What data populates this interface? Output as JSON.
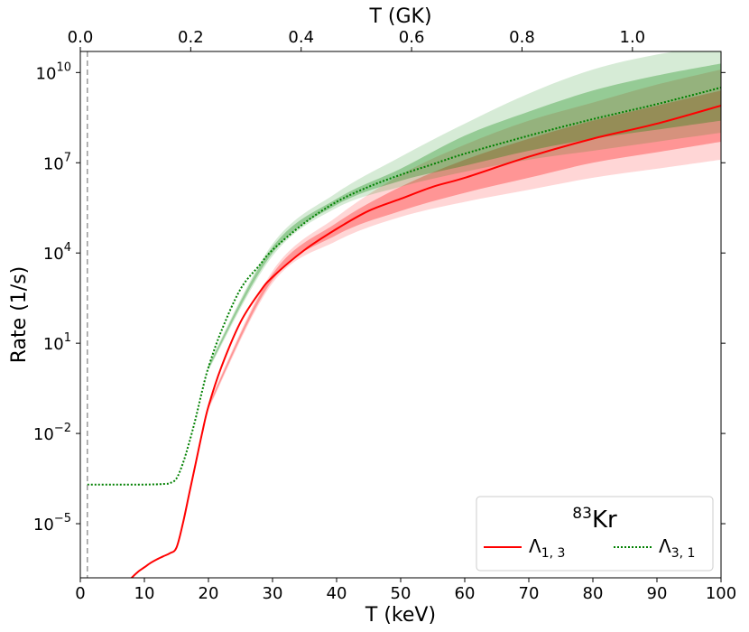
{
  "chart_data": {
    "type": "line",
    "title": "",
    "xlabel": "T (keV)",
    "ylabel": "Rate (1/s)",
    "x2label": "T (GK)",
    "xlim": [
      0,
      100
    ],
    "ylim_log10": [
      -6.8,
      10.7
    ],
    "yscale": "log",
    "x_ticks": [
      0,
      10,
      20,
      30,
      40,
      50,
      60,
      70,
      80,
      90,
      100
    ],
    "x_tick_labels": [
      "0",
      "10",
      "20",
      "30",
      "40",
      "50",
      "60",
      "70",
      "80",
      "90",
      "100"
    ],
    "y_ticks": [
      {
        "exp": 10,
        "base": "10",
        "sup": "10"
      },
      {
        "exp": 7,
        "base": "10",
        "sup": "7"
      },
      {
        "exp": 4,
        "base": "10",
        "sup": "4"
      },
      {
        "exp": 1,
        "base": "10",
        "sup": "1"
      },
      {
        "exp": -2,
        "base": "10",
        "sup": "−2"
      },
      {
        "exp": -5,
        "base": "10",
        "sup": "−5"
      }
    ],
    "x2_ticks": [
      0.0,
      0.2,
      0.4,
      0.6,
      0.8,
      1.0
    ],
    "x2_tick_labels": [
      "0.0",
      "0.2",
      "0.4",
      "0.6",
      "0.8",
      "1.0"
    ],
    "vline_x": 1.1,
    "legend": {
      "title_sup": "83",
      "title_base": "Kr",
      "placement": "lower-right",
      "entries": [
        {
          "base": "Λ",
          "sub": "1, 3",
          "color": "#ff0000",
          "style": "solid"
        },
        {
          "base": "Λ",
          "sub": "3, 1",
          "color": "#008000",
          "style": "dotted"
        }
      ]
    },
    "series": [
      {
        "name": "Λ1,3",
        "color": "#ff0000",
        "style": "solid",
        "x": [
          7,
          8,
          9,
          10,
          11,
          12,
          13,
          14,
          15,
          16,
          17,
          18,
          19,
          20,
          22,
          25,
          28,
          30,
          35,
          40,
          45,
          50,
          55,
          60,
          70,
          80,
          90,
          100
        ],
        "log10_y": [
          -7.0,
          -6.8,
          -6.6,
          -6.45,
          -6.3,
          -6.18,
          -6.08,
          -5.98,
          -5.8,
          -5.0,
          -4.0,
          -3.0,
          -2.0,
          -1.1,
          0.2,
          1.7,
          2.7,
          3.2,
          4.1,
          4.8,
          5.4,
          5.8,
          6.2,
          6.5,
          7.2,
          7.8,
          8.3,
          8.9
        ],
        "band_inner_log10": [
          {
            "x": 20,
            "lo": -1.15,
            "hi": -1.05
          },
          {
            "x": 30,
            "lo": 3.1,
            "hi": 3.3
          },
          {
            "x": 40,
            "lo": 4.6,
            "hi": 5.0
          },
          {
            "x": 50,
            "lo": 5.4,
            "hi": 6.2
          },
          {
            "x": 60,
            "lo": 6.0,
            "hi": 7.1
          },
          {
            "x": 70,
            "lo": 6.5,
            "hi": 7.8
          },
          {
            "x": 80,
            "lo": 7.0,
            "hi": 8.4
          },
          {
            "x": 90,
            "lo": 7.35,
            "hi": 8.9
          },
          {
            "x": 100,
            "lo": 7.7,
            "hi": 9.4
          }
        ],
        "band_outer_log10": [
          {
            "x": 20,
            "lo": -1.2,
            "hi": -1.0
          },
          {
            "x": 30,
            "lo": 3.0,
            "hi": 3.4
          },
          {
            "x": 40,
            "lo": 4.4,
            "hi": 5.2
          },
          {
            "x": 50,
            "lo": 5.2,
            "hi": 6.6
          },
          {
            "x": 60,
            "lo": 5.7,
            "hi": 7.6
          },
          {
            "x": 70,
            "lo": 6.1,
            "hi": 8.4
          },
          {
            "x": 80,
            "lo": 6.5,
            "hi": 9.0
          },
          {
            "x": 90,
            "lo": 6.8,
            "hi": 9.6
          },
          {
            "x": 100,
            "lo": 7.1,
            "hi": 10.1
          }
        ]
      },
      {
        "name": "Λ3,1",
        "color": "#008000",
        "style": "dotted",
        "x": [
          1.1,
          5,
          10,
          13,
          14,
          15,
          16,
          17,
          18,
          19,
          20,
          22,
          25,
          28,
          30,
          35,
          40,
          45,
          50,
          55,
          60,
          70,
          80,
          90,
          100
        ],
        "log10_y": [
          -3.7,
          -3.7,
          -3.7,
          -3.68,
          -3.65,
          -3.5,
          -3.0,
          -2.3,
          -1.5,
          -0.6,
          0.2,
          1.4,
          2.8,
          3.6,
          4.1,
          5.0,
          5.7,
          6.2,
          6.6,
          6.95,
          7.3,
          7.9,
          8.45,
          8.95,
          9.5
        ],
        "band_inner_log10": [
          {
            "x": 20,
            "lo": 0.15,
            "hi": 0.25
          },
          {
            "x": 30,
            "lo": 4.0,
            "hi": 4.2
          },
          {
            "x": 40,
            "lo": 5.6,
            "hi": 5.8
          },
          {
            "x": 50,
            "lo": 6.4,
            "hi": 6.8
          },
          {
            "x": 60,
            "lo": 6.9,
            "hi": 7.9
          },
          {
            "x": 70,
            "lo": 7.4,
            "hi": 8.7
          },
          {
            "x": 80,
            "lo": 7.8,
            "hi": 9.4
          },
          {
            "x": 90,
            "lo": 8.1,
            "hi": 9.9
          },
          {
            "x": 100,
            "lo": 8.4,
            "hi": 10.3
          }
        ],
        "band_outer_log10": [
          {
            "x": 20,
            "lo": 0.1,
            "hi": 0.3
          },
          {
            "x": 30,
            "lo": 3.9,
            "hi": 4.3
          },
          {
            "x": 40,
            "lo": 5.5,
            "hi": 6.0
          },
          {
            "x": 50,
            "lo": 6.2,
            "hi": 7.2
          },
          {
            "x": 60,
            "lo": 6.7,
            "hi": 8.3
          },
          {
            "x": 70,
            "lo": 7.1,
            "hi": 9.3
          },
          {
            "x": 80,
            "lo": 7.4,
            "hi": 10.1
          },
          {
            "x": 90,
            "lo": 7.7,
            "hi": 10.6
          },
          {
            "x": 100,
            "lo": 8.0,
            "hi": 10.9
          }
        ]
      }
    ]
  }
}
